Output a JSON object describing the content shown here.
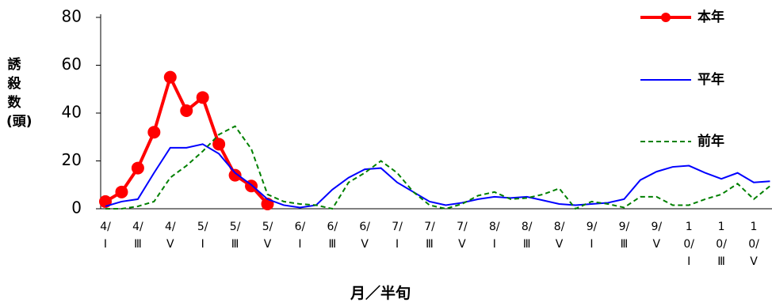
{
  "chart_data": {
    "type": "line",
    "y_label": "誘殺数(頭)",
    "x_label": "月／半旬",
    "categories": [
      "4/Ⅰ",
      null,
      "4/Ⅲ",
      null,
      "4/Ⅴ",
      null,
      "5/Ⅰ",
      null,
      "5/Ⅲ",
      null,
      "5/Ⅴ",
      null,
      "6/Ⅰ",
      null,
      "6/Ⅲ",
      null,
      "6/Ⅴ",
      null,
      "7/Ⅰ",
      null,
      "7/Ⅲ",
      null,
      "7/Ⅴ",
      null,
      "8/Ⅰ",
      null,
      "8/Ⅲ",
      null,
      "8/Ⅴ",
      null,
      "9/Ⅰ",
      null,
      "9/Ⅲ",
      null,
      "9/Ⅴ",
      null,
      "10/Ⅰ",
      null,
      "10/Ⅲ",
      null,
      "10/Ⅴ",
      null
    ],
    "series": [
      {
        "name": "本年",
        "color": "#ff0000",
        "style": "solid",
        "markers": true,
        "values": [
          3,
          7,
          17,
          32,
          55,
          41,
          46.5,
          27,
          14,
          9.5,
          2,
          null,
          null,
          null,
          null,
          null,
          null,
          null,
          null,
          null,
          null,
          null,
          null,
          null,
          null,
          null,
          null,
          null,
          null,
          null,
          null,
          null,
          null,
          null,
          null,
          null,
          null,
          null,
          null,
          null,
          null,
          null
        ]
      },
      {
        "name": "平年",
        "color": "#0000ff",
        "style": "solid",
        "markers": false,
        "values": [
          1,
          3,
          4,
          15,
          25.5,
          25.5,
          27,
          23,
          15,
          10,
          4,
          1.5,
          0.5,
          1.5,
          8,
          13,
          16.5,
          17,
          11,
          7,
          3,
          1.5,
          2.5,
          4,
          5,
          4.5,
          5,
          3.5,
          2,
          1.5,
          2,
          2.5,
          4,
          12,
          15.5,
          17.5,
          18,
          15,
          12.5,
          15,
          11,
          11.5
        ]
      },
      {
        "name": "前年",
        "color": "#008000",
        "style": "dashed",
        "markers": false,
        "values": [
          0,
          0,
          1,
          3,
          13,
          18,
          24,
          31,
          34.5,
          25,
          6,
          3,
          2,
          1.5,
          0,
          11,
          15,
          20,
          15,
          7,
          1.5,
          0,
          2,
          5.5,
          7,
          4,
          4.5,
          6,
          8.5,
          0,
          3,
          2,
          0.5,
          5,
          5,
          1.5,
          1.5,
          4,
          6,
          10.5,
          4,
          9.5
        ]
      }
    ],
    "ylim": [
      0,
      80
    ],
    "yticks": [
      0,
      20,
      40,
      60,
      80
    ],
    "grid": false,
    "legend": "right"
  }
}
